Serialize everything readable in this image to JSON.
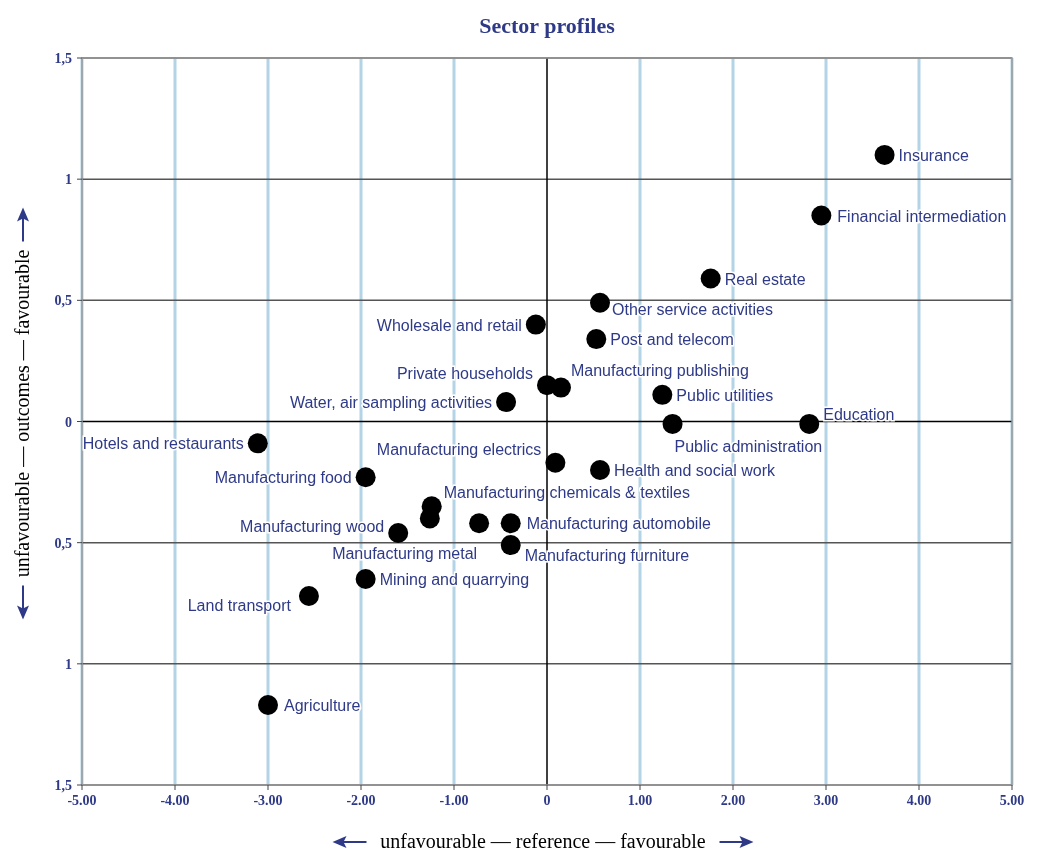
{
  "chart_data": {
    "type": "scatter",
    "title": "Sector profiles",
    "xlabel": "unfavourable — reference — favourable",
    "ylabel": "unfavourable — outcomes — favourable",
    "xlim": [
      -5,
      5
    ],
    "xticks": [
      {
        "value": -5,
        "label": "-5.00"
      },
      {
        "value": -4,
        "label": "-4.00"
      },
      {
        "value": -3,
        "label": "-3.00"
      },
      {
        "value": -2,
        "label": "-2.00"
      },
      {
        "value": -1,
        "label": "-1.00"
      },
      0,
      {
        "value": 1,
        "label": "1.00"
      },
      {
        "value": 2,
        "label": "2.00"
      },
      {
        "value": 3,
        "label": "3.00"
      },
      {
        "value": 4,
        "label": "4.00"
      },
      {
        "value": 5,
        "label": "5.00"
      }
    ],
    "ylim": [
      -1.5,
      1.5
    ],
    "yticks": [
      {
        "value": -1.5,
        "label": "1,5"
      },
      {
        "value": -1,
        "label": "1"
      },
      {
        "value": -0.5,
        "label": "0,5"
      },
      0,
      {
        "value": 0.5,
        "label": "0,5"
      },
      1,
      {
        "value": 1.5,
        "label": "1,5"
      }
    ],
    "grid": true,
    "marker": "circle",
    "series": [
      {
        "name": "Insurance",
        "color": "#000000",
        "x": [
          3.63
        ],
        "values": [
          1.1
        ]
      },
      {
        "name": "Financial intermediation",
        "color": "#000000",
        "x": [
          2.95
        ],
        "values": [
          0.85
        ]
      },
      {
        "name": "Real estate",
        "color": "#000000",
        "x": [
          1.76
        ],
        "values": [
          0.59
        ]
      },
      {
        "name": "Other service activities",
        "color": "#000000",
        "x": [
          0.57
        ],
        "values": [
          0.49
        ]
      },
      {
        "name": "Wholesale and retail",
        "color": "#000000",
        "x": [
          -0.12
        ],
        "values": [
          0.4
        ]
      },
      {
        "name": "Post and telecom",
        "color": "#000000",
        "x": [
          0.53
        ],
        "values": [
          0.34
        ]
      },
      {
        "name": "Manufacturing publishing",
        "color": "#000000",
        "x": [
          0.15
        ],
        "values": [
          0.14
        ]
      },
      {
        "name": "Private households",
        "color": "#000000",
        "x": [
          0.0
        ],
        "values": [
          0.15
        ]
      },
      {
        "name": "Public utilities",
        "color": "#000000",
        "x": [
          1.24
        ],
        "values": [
          0.11
        ]
      },
      {
        "name": "Water, air sampling activities",
        "color": "#000000",
        "x": [
          -0.44
        ],
        "values": [
          0.08
        ]
      },
      {
        "name": "Education",
        "color": "#000000",
        "x": [
          2.82
        ],
        "values": [
          -0.01
        ]
      },
      {
        "name": "Public administration",
        "color": "#000000",
        "x": [
          1.35
        ],
        "values": [
          -0.01
        ]
      },
      {
        "name": "Hotels and restaurants",
        "color": "#000000",
        "x": [
          -3.11
        ],
        "values": [
          -0.09
        ]
      },
      {
        "name": "Manufacturing electrics",
        "color": "#000000",
        "x": [
          0.09
        ],
        "values": [
          -0.17
        ]
      },
      {
        "name": "Health and social work",
        "color": "#000000",
        "x": [
          0.57
        ],
        "values": [
          -0.2
        ]
      },
      {
        "name": "Manufacturing food",
        "color": "#000000",
        "x": [
          -1.95
        ],
        "values": [
          -0.23
        ]
      },
      {
        "name": "Manufacturing chemicals & textiles",
        "color": "#000000",
        "x": [
          -1.24
        ],
        "values": [
          -0.35
        ]
      },
      {
        "color": "#000000",
        "x": [
          -1.26
        ],
        "values": [
          -0.4
        ]
      },
      {
        "name": "Manufacturing wood",
        "color": "#000000",
        "x": [
          -1.6
        ],
        "values": [
          -0.46
        ]
      },
      {
        "name": "Manufacturing metal",
        "color": "#000000",
        "x": [
          -0.73
        ],
        "values": [
          -0.42
        ]
      },
      {
        "name": "Manufacturing automobile",
        "color": "#000000",
        "x": [
          -0.39
        ],
        "values": [
          -0.42
        ]
      },
      {
        "name": "Manufacturing furniture",
        "color": "#000000",
        "x": [
          -0.39
        ],
        "values": [
          -0.51
        ]
      },
      {
        "name": "Mining and quarrying",
        "color": "#000000",
        "x": [
          -1.95
        ],
        "values": [
          -0.65
        ]
      },
      {
        "name": "Land transport",
        "color": "#000000",
        "x": [
          -2.56
        ],
        "values": [
          -0.72
        ]
      },
      {
        "name": "Agriculture",
        "color": "#000000",
        "x": [
          -3.0
        ],
        "values": [
          -1.17
        ]
      }
    ]
  }
}
